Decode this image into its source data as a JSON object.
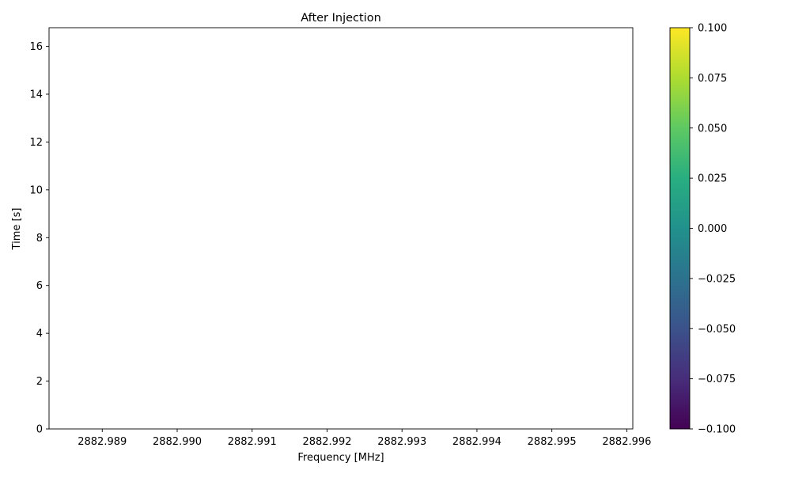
{
  "chart_data": {
    "type": "heatmap",
    "title": "After Injection",
    "xlabel": "Frequency [MHz]",
    "ylabel": "Time [s]",
    "xlim": [
      2882.98829,
      2882.99608
    ],
    "ylim": [
      0,
      16.78
    ],
    "x_ticks": [
      2882.989,
      2882.99,
      2882.991,
      2882.992,
      2882.993,
      2882.994,
      2882.995,
      2882.996
    ],
    "x_tick_labels": [
      "2882.989",
      "2882.990",
      "2882.991",
      "2882.992",
      "2882.993",
      "2882.994",
      "2882.995",
      "2882.996"
    ],
    "y_ticks": [
      0,
      2,
      4,
      6,
      8,
      10,
      12,
      14,
      16
    ],
    "y_tick_labels": [
      "0",
      "2",
      "4",
      "6",
      "8",
      "10",
      "12",
      "14",
      "16"
    ],
    "colorbar": {
      "colormap": "viridis",
      "range": [
        -0.1,
        0.1
      ],
      "ticks": [
        -0.1,
        -0.075,
        -0.05,
        -0.025,
        0.0,
        0.025,
        0.05,
        0.075,
        0.1
      ],
      "tick_labels": [
        "−0.100",
        "−0.075",
        "−0.050",
        "−0.025",
        "0.000",
        "0.025",
        "0.050",
        "0.075",
        "0.100"
      ]
    },
    "values": [],
    "grid": false,
    "legend": false
  }
}
